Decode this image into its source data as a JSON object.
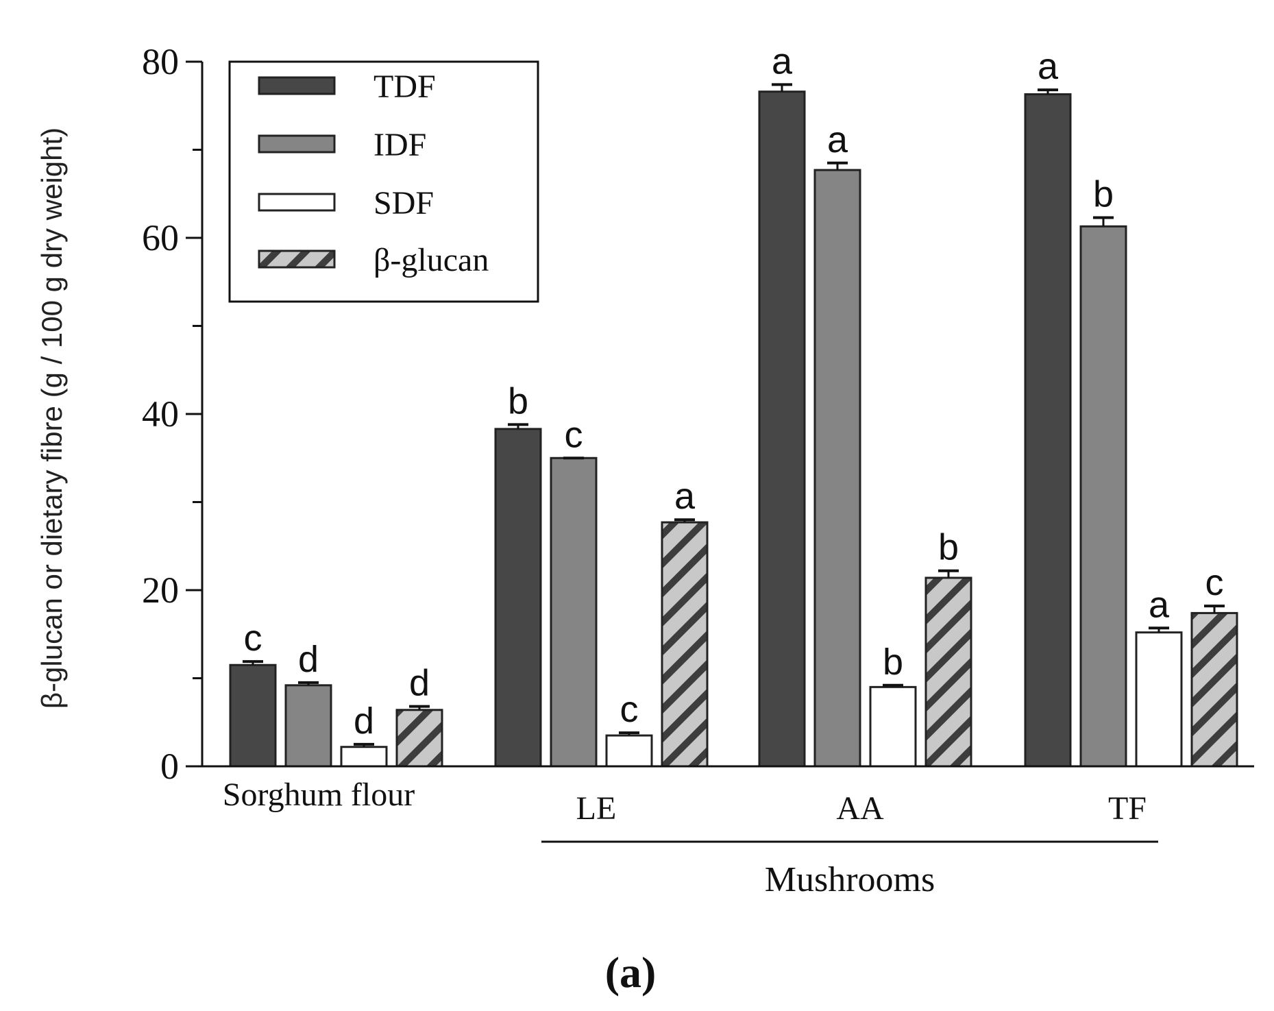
{
  "chart_data": {
    "type": "bar",
    "title": "",
    "ylabel": "β-glucan or dietary fibre (g / 100 g dry weight)",
    "xlabel": "",
    "ylim": [
      0,
      80
    ],
    "yticks": [
      0,
      20,
      40,
      60,
      80
    ],
    "categories": [
      "Sorghum flour",
      "LE",
      "AA",
      "TF"
    ],
    "group_bracket": {
      "label": "Mushrooms",
      "covers": [
        "LE",
        "AA",
        "TF"
      ]
    },
    "series": [
      {
        "name": "TDF",
        "color": "#474747",
        "pattern": "solid",
        "values": [
          11.5,
          38.3,
          76.6,
          76.3
        ],
        "errors": [
          0.4,
          0.5,
          0.8,
          0.5
        ],
        "letters": [
          "c",
          "b",
          "a",
          "a"
        ]
      },
      {
        "name": "IDF",
        "color": "#858585",
        "pattern": "solid",
        "values": [
          9.2,
          35.0,
          67.7,
          61.3
        ],
        "errors": [
          0.3,
          0.0,
          0.8,
          1.0
        ],
        "letters": [
          "d",
          "c",
          "a",
          "b"
        ]
      },
      {
        "name": "SDF",
        "color": "#ffffff",
        "pattern": "solid",
        "values": [
          2.2,
          3.5,
          9.0,
          15.2
        ],
        "errors": [
          0.3,
          0.3,
          0.2,
          0.5
        ],
        "letters": [
          "d",
          "c",
          "b",
          "a"
        ]
      },
      {
        "name": "β-glucan",
        "color": "#c8c8c8",
        "pattern": "hatched",
        "values": [
          6.4,
          27.7,
          21.4,
          17.4
        ],
        "errors": [
          0.4,
          0.3,
          0.8,
          0.8
        ],
        "letters": [
          "d",
          "a",
          "b",
          "c"
        ]
      }
    ],
    "legend_position": "top-left",
    "panel_label": "(a)"
  }
}
